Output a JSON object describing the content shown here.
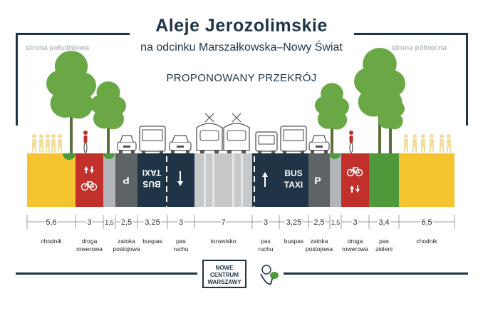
{
  "header": {
    "title": "Aleje Jerozolimskie",
    "subtitle": "na odcinku Marszałkowska–Nowy Świat",
    "section_title": "PROPONOWANY PRZEKRÓJ",
    "side_left": "strona południowa",
    "side_right": "strona północna"
  },
  "strips": [
    {
      "width": "5,6",
      "label": "chodnik",
      "color": "#f3c330"
    },
    {
      "width": "3",
      "label": "droga\nrowerowa",
      "color": "#c1302b"
    },
    {
      "width": "1,5",
      "label": "",
      "color": "#b3b6b8"
    },
    {
      "width": "2,5",
      "label": "zatoka\npostojowa",
      "color": "#5e6366"
    },
    {
      "width": "3,25",
      "label": "buspas",
      "color": "#1f3446"
    },
    {
      "width": "3",
      "label": "pas\nruchu",
      "color": "#1f3446"
    },
    {
      "width": "7",
      "label": "torowisko",
      "color": "#c6c8c9"
    },
    {
      "width": "3",
      "label": "pas\nruchu",
      "color": "#1f3446"
    },
    {
      "width": "3,25",
      "label": "buspas",
      "color": "#1f3446"
    },
    {
      "width": "2,5",
      "label": "zatoka\npostojowa",
      "color": "#5e6366"
    },
    {
      "width": "1,5",
      "label": "",
      "color": "#b3b6b8"
    },
    {
      "width": "3",
      "label": "droga\nrowerowa",
      "color": "#c1302b"
    },
    {
      "width": "3,4",
      "label": "pas\nzieleni",
      "color": "#4e9a3a"
    },
    {
      "width": "6,5",
      "label": "chodnik",
      "color": "#f3c330"
    }
  ],
  "road_marks": {
    "parking": "P",
    "bus_left": "BUS",
    "taxi_left": "TAXI",
    "bus_right": "BUS",
    "taxi_right": "TAXI"
  },
  "logos": {
    "ncw_line1": "NOWE",
    "ncw_line2": "CENTRUM",
    "ncw_line3": "WARSZAWY",
    "mascot": "mascot-icon"
  },
  "colors": {
    "navy": "#1f3446",
    "yellow": "#f3c330",
    "red": "#c1302b",
    "green": "#4e9a3a",
    "tree": "#6aa846",
    "grey": "#5e6366",
    "light_grey": "#c6c8c9"
  }
}
